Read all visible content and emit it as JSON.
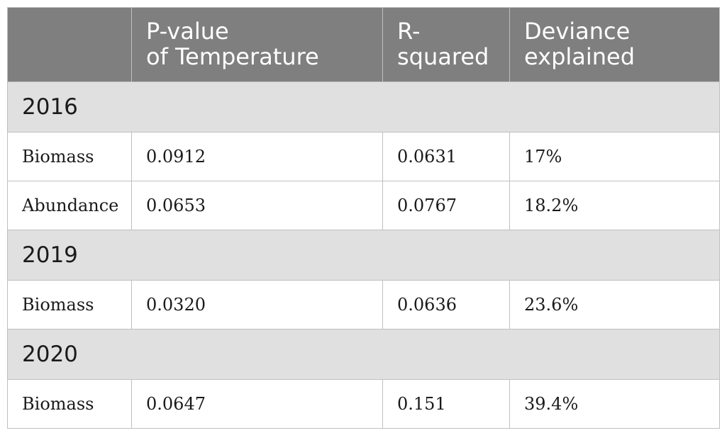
{
  "table": {
    "headers": [
      "",
      "P-value\nof Temperature",
      "R-\nsquared",
      "Deviance\nexplained"
    ],
    "header_lines": [
      [],
      [
        "P-value",
        "of Temperature"
      ],
      [
        "R-",
        "squared"
      ],
      [
        "Deviance",
        "explained"
      ]
    ],
    "groups": [
      {
        "year": "2016",
        "rows": [
          {
            "response": "Biomass",
            "p_value": "0.0912",
            "r_squared": "0.0631",
            "deviance": "17%"
          },
          {
            "response": "Abundance",
            "p_value": "0.0653",
            "r_squared": "0.0767",
            "deviance": "18.2%"
          }
        ]
      },
      {
        "year": "2019",
        "rows": [
          {
            "response": "Biomass",
            "p_value": "0.0320",
            "r_squared": "0.0636",
            "deviance": "23.6%"
          }
        ]
      },
      {
        "year": "2020",
        "rows": [
          {
            "response": "Biomass",
            "p_value": "0.0647",
            "r_squared": "0.151",
            "deviance": "39.4%"
          }
        ]
      }
    ]
  },
  "colors": {
    "header_bg": "#7f7f7f",
    "header_text": "#ffffff",
    "group_bg": "#e0e0e0",
    "border": "#bfbfbf"
  }
}
